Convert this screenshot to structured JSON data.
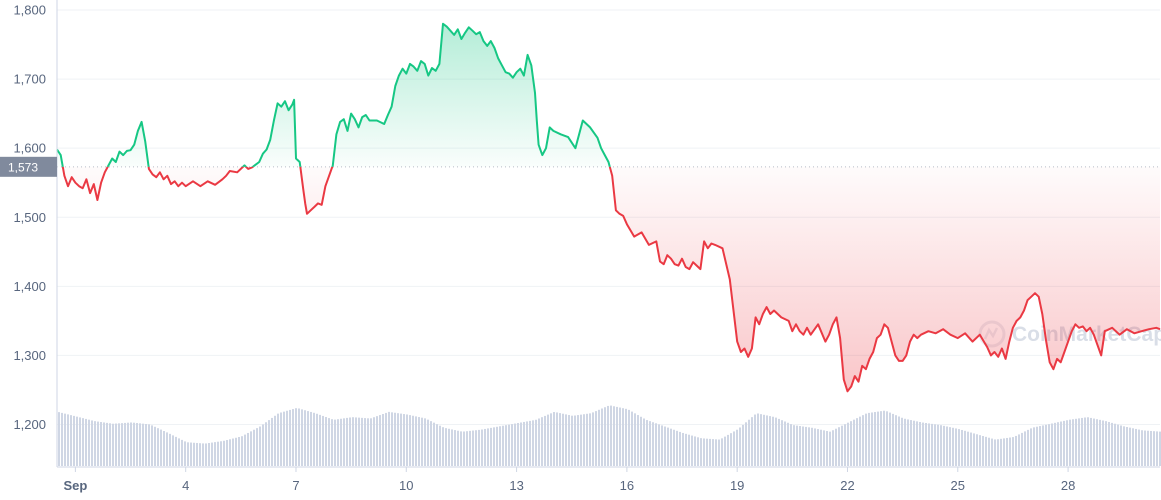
{
  "chart_data": {
    "type": "area",
    "title": "",
    "xlabel": "",
    "ylabel": "",
    "ylim": [
      1140,
      1800
    ],
    "y_ticks": [
      1200,
      1300,
      1400,
      1500,
      1600,
      1700,
      1800
    ],
    "y_tick_labels": [
      "1,200",
      "1,300",
      "1,400",
      "1,500",
      "1,600",
      "1,700",
      "1,800"
    ],
    "xlim": [
      0.5,
      30.5
    ],
    "x_ticks": [
      1,
      4,
      7,
      10,
      13,
      16,
      19,
      22,
      25,
      28
    ],
    "x_tick_labels": [
      "Sep",
      "4",
      "7",
      "10",
      "13",
      "16",
      "19",
      "22",
      "25",
      "28"
    ],
    "reference_value": 1573,
    "reference_label": "1,573",
    "watermark": "CoinMarketCap",
    "colors": {
      "above": "#16c784",
      "below": "#ea3943",
      "volume": "#cfd6e4",
      "reference_bg": "#808a9d"
    },
    "series": [
      {
        "values": [
          [
            0.5,
            1598
          ],
          [
            0.6,
            1590
          ],
          [
            0.7,
            1560
          ],
          [
            0.8,
            1545
          ],
          [
            0.9,
            1558
          ],
          [
            1.0,
            1550
          ],
          [
            1.1,
            1545
          ],
          [
            1.2,
            1542
          ],
          [
            1.3,
            1555
          ],
          [
            1.4,
            1535
          ],
          [
            1.5,
            1548
          ],
          [
            1.6,
            1525
          ],
          [
            1.7,
            1550
          ],
          [
            1.8,
            1565
          ],
          [
            1.9,
            1575
          ],
          [
            2.0,
            1585
          ],
          [
            2.1,
            1580
          ],
          [
            2.2,
            1595
          ],
          [
            2.3,
            1590
          ],
          [
            2.4,
            1596
          ],
          [
            2.5,
            1597
          ],
          [
            2.6,
            1605
          ],
          [
            2.7,
            1625
          ],
          [
            2.8,
            1638
          ],
          [
            2.9,
            1610
          ],
          [
            3.0,
            1570
          ],
          [
            3.1,
            1562
          ],
          [
            3.2,
            1558
          ],
          [
            3.3,
            1565
          ],
          [
            3.4,
            1555
          ],
          [
            3.5,
            1560
          ],
          [
            3.6,
            1548
          ],
          [
            3.7,
            1552
          ],
          [
            3.8,
            1545
          ],
          [
            3.9,
            1550
          ],
          [
            4.0,
            1545
          ],
          [
            4.2,
            1552
          ],
          [
            4.4,
            1545
          ],
          [
            4.6,
            1552
          ],
          [
            4.8,
            1547
          ],
          [
            5.0,
            1555
          ],
          [
            5.1,
            1560
          ],
          [
            5.2,
            1567
          ],
          [
            5.4,
            1565
          ],
          [
            5.6,
            1575
          ],
          [
            5.7,
            1570
          ],
          [
            5.8,
            1572
          ],
          [
            6.0,
            1580
          ],
          [
            6.1,
            1592
          ],
          [
            6.2,
            1598
          ],
          [
            6.3,
            1612
          ],
          [
            6.4,
            1640
          ],
          [
            6.5,
            1665
          ],
          [
            6.6,
            1660
          ],
          [
            6.7,
            1668
          ],
          [
            6.8,
            1655
          ],
          [
            6.9,
            1663
          ],
          [
            6.95,
            1670
          ],
          [
            7.0,
            1585
          ],
          [
            7.1,
            1580
          ],
          [
            7.2,
            1540
          ],
          [
            7.25,
            1520
          ],
          [
            7.3,
            1505
          ],
          [
            7.4,
            1510
          ],
          [
            7.5,
            1515
          ],
          [
            7.6,
            1520
          ],
          [
            7.7,
            1518
          ],
          [
            7.8,
            1545
          ],
          [
            7.9,
            1560
          ],
          [
            8.0,
            1575
          ],
          [
            8.1,
            1620
          ],
          [
            8.2,
            1638
          ],
          [
            8.3,
            1642
          ],
          [
            8.4,
            1625
          ],
          [
            8.5,
            1650
          ],
          [
            8.6,
            1642
          ],
          [
            8.7,
            1630
          ],
          [
            8.8,
            1645
          ],
          [
            8.9,
            1648
          ],
          [
            9.0,
            1640
          ],
          [
            9.2,
            1640
          ],
          [
            9.4,
            1635
          ],
          [
            9.5,
            1648
          ],
          [
            9.6,
            1660
          ],
          [
            9.7,
            1690
          ],
          [
            9.8,
            1705
          ],
          [
            9.9,
            1715
          ],
          [
            10.0,
            1708
          ],
          [
            10.1,
            1722
          ],
          [
            10.2,
            1718
          ],
          [
            10.3,
            1712
          ],
          [
            10.4,
            1726
          ],
          [
            10.5,
            1722
          ],
          [
            10.6,
            1705
          ],
          [
            10.7,
            1716
          ],
          [
            10.8,
            1712
          ],
          [
            10.9,
            1722
          ],
          [
            11.0,
            1780
          ],
          [
            11.1,
            1776
          ],
          [
            11.2,
            1770
          ],
          [
            11.3,
            1764
          ],
          [
            11.4,
            1772
          ],
          [
            11.5,
            1758
          ],
          [
            11.6,
            1767
          ],
          [
            11.7,
            1775
          ],
          [
            11.8,
            1770
          ],
          [
            11.9,
            1765
          ],
          [
            12.0,
            1768
          ],
          [
            12.1,
            1755
          ],
          [
            12.2,
            1748
          ],
          [
            12.3,
            1755
          ],
          [
            12.4,
            1745
          ],
          [
            12.5,
            1730
          ],
          [
            12.6,
            1720
          ],
          [
            12.7,
            1710
          ],
          [
            12.8,
            1708
          ],
          [
            12.9,
            1702
          ],
          [
            13.0,
            1710
          ],
          [
            13.1,
            1715
          ],
          [
            13.2,
            1705
          ],
          [
            13.3,
            1735
          ],
          [
            13.4,
            1720
          ],
          [
            13.5,
            1680
          ],
          [
            13.55,
            1640
          ],
          [
            13.6,
            1605
          ],
          [
            13.7,
            1590
          ],
          [
            13.8,
            1600
          ],
          [
            13.9,
            1630
          ],
          [
            14.0,
            1625
          ],
          [
            14.2,
            1620
          ],
          [
            14.4,
            1616
          ],
          [
            14.6,
            1600
          ],
          [
            14.8,
            1640
          ],
          [
            15.0,
            1630
          ],
          [
            15.2,
            1615
          ],
          [
            15.3,
            1600
          ],
          [
            15.4,
            1590
          ],
          [
            15.5,
            1580
          ],
          [
            15.6,
            1560
          ],
          [
            15.7,
            1510
          ],
          [
            15.8,
            1505
          ],
          [
            15.9,
            1502
          ],
          [
            16.0,
            1490
          ],
          [
            16.2,
            1472
          ],
          [
            16.4,
            1478
          ],
          [
            16.6,
            1460
          ],
          [
            16.8,
            1465
          ],
          [
            16.9,
            1436
          ],
          [
            17.0,
            1432
          ],
          [
            17.1,
            1445
          ],
          [
            17.2,
            1440
          ],
          [
            17.3,
            1432
          ],
          [
            17.4,
            1430
          ],
          [
            17.5,
            1440
          ],
          [
            17.6,
            1428
          ],
          [
            17.7,
            1425
          ],
          [
            17.8,
            1435
          ],
          [
            17.9,
            1430
          ],
          [
            18.0,
            1425
          ],
          [
            18.1,
            1465
          ],
          [
            18.2,
            1455
          ],
          [
            18.3,
            1462
          ],
          [
            18.4,
            1460
          ],
          [
            18.6,
            1455
          ],
          [
            18.8,
            1410
          ],
          [
            18.9,
            1365
          ],
          [
            19.0,
            1320
          ],
          [
            19.1,
            1305
          ],
          [
            19.2,
            1310
          ],
          [
            19.3,
            1298
          ],
          [
            19.4,
            1310
          ],
          [
            19.5,
            1355
          ],
          [
            19.6,
            1345
          ],
          [
            19.7,
            1360
          ],
          [
            19.8,
            1370
          ],
          [
            19.9,
            1360
          ],
          [
            20.0,
            1365
          ],
          [
            20.2,
            1355
          ],
          [
            20.4,
            1350
          ],
          [
            20.5,
            1335
          ],
          [
            20.6,
            1345
          ],
          [
            20.7,
            1335
          ],
          [
            20.8,
            1330
          ],
          [
            20.9,
            1340
          ],
          [
            21.0,
            1330
          ],
          [
            21.2,
            1345
          ],
          [
            21.4,
            1320
          ],
          [
            21.5,
            1330
          ],
          [
            21.6,
            1345
          ],
          [
            21.7,
            1355
          ],
          [
            21.8,
            1325
          ],
          [
            21.9,
            1265
          ],
          [
            22.0,
            1248
          ],
          [
            22.1,
            1255
          ],
          [
            22.2,
            1270
          ],
          [
            22.3,
            1262
          ],
          [
            22.4,
            1285
          ],
          [
            22.5,
            1280
          ],
          [
            22.6,
            1295
          ],
          [
            22.7,
            1305
          ],
          [
            22.8,
            1325
          ],
          [
            22.9,
            1330
          ],
          [
            23.0,
            1345
          ],
          [
            23.1,
            1340
          ],
          [
            23.2,
            1320
          ],
          [
            23.3,
            1300
          ],
          [
            23.4,
            1292
          ],
          [
            23.5,
            1292
          ],
          [
            23.6,
            1300
          ],
          [
            23.7,
            1320
          ],
          [
            23.8,
            1330
          ],
          [
            23.9,
            1325
          ],
          [
            24.0,
            1330
          ],
          [
            24.2,
            1335
          ],
          [
            24.4,
            1332
          ],
          [
            24.6,
            1338
          ],
          [
            24.8,
            1330
          ],
          [
            25.0,
            1325
          ],
          [
            25.2,
            1332
          ],
          [
            25.4,
            1320
          ],
          [
            25.6,
            1330
          ],
          [
            25.8,
            1312
          ],
          [
            25.9,
            1300
          ],
          [
            26.0,
            1305
          ],
          [
            26.1,
            1298
          ],
          [
            26.2,
            1310
          ],
          [
            26.3,
            1295
          ],
          [
            26.4,
            1320
          ],
          [
            26.5,
            1340
          ],
          [
            26.6,
            1350
          ],
          [
            26.7,
            1355
          ],
          [
            26.8,
            1365
          ],
          [
            26.9,
            1380
          ],
          [
            27.0,
            1385
          ],
          [
            27.1,
            1390
          ],
          [
            27.2,
            1385
          ],
          [
            27.3,
            1360
          ],
          [
            27.4,
            1322
          ],
          [
            27.5,
            1290
          ],
          [
            27.6,
            1280
          ],
          [
            27.7,
            1295
          ],
          [
            27.8,
            1290
          ],
          [
            27.9,
            1305
          ],
          [
            28.0,
            1320
          ],
          [
            28.1,
            1335
          ],
          [
            28.2,
            1345
          ],
          [
            28.3,
            1340
          ],
          [
            28.4,
            1342
          ],
          [
            28.5,
            1335
          ],
          [
            28.6,
            1340
          ],
          [
            28.7,
            1330
          ],
          [
            28.8,
            1315
          ],
          [
            28.9,
            1300
          ],
          [
            29.0,
            1335
          ],
          [
            29.2,
            1340
          ],
          [
            29.4,
            1330
          ],
          [
            29.6,
            1338
          ],
          [
            29.8,
            1332
          ],
          [
            30.0,
            1335
          ],
          [
            30.2,
            1338
          ],
          [
            30.4,
            1340
          ],
          [
            30.5,
            1338
          ]
        ]
      }
    ],
    "volume_series": {
      "values": [
        [
          0.5,
          0.82
        ],
        [
          1.0,
          0.75
        ],
        [
          1.5,
          0.68
        ],
        [
          2.0,
          0.64
        ],
        [
          2.5,
          0.66
        ],
        [
          3.0,
          0.63
        ],
        [
          3.5,
          0.5
        ],
        [
          4.0,
          0.36
        ],
        [
          4.5,
          0.34
        ],
        [
          5.0,
          0.38
        ],
        [
          5.5,
          0.45
        ],
        [
          6.0,
          0.6
        ],
        [
          6.5,
          0.8
        ],
        [
          7.0,
          0.88
        ],
        [
          7.5,
          0.8
        ],
        [
          8.0,
          0.7
        ],
        [
          8.5,
          0.74
        ],
        [
          9.0,
          0.72
        ],
        [
          9.5,
          0.82
        ],
        [
          10.0,
          0.78
        ],
        [
          10.5,
          0.72
        ],
        [
          11.0,
          0.58
        ],
        [
          11.5,
          0.52
        ],
        [
          12.0,
          0.55
        ],
        [
          12.5,
          0.6
        ],
        [
          13.0,
          0.65
        ],
        [
          13.5,
          0.7
        ],
        [
          14.0,
          0.82
        ],
        [
          14.5,
          0.76
        ],
        [
          15.0,
          0.8
        ],
        [
          15.5,
          0.92
        ],
        [
          16.0,
          0.86
        ],
        [
          16.5,
          0.7
        ],
        [
          17.0,
          0.6
        ],
        [
          17.5,
          0.5
        ],
        [
          18.0,
          0.42
        ],
        [
          18.5,
          0.4
        ],
        [
          19.0,
          0.56
        ],
        [
          19.5,
          0.8
        ],
        [
          20.0,
          0.74
        ],
        [
          20.5,
          0.62
        ],
        [
          21.0,
          0.58
        ],
        [
          21.5,
          0.52
        ],
        [
          22.0,
          0.66
        ],
        [
          22.5,
          0.8
        ],
        [
          23.0,
          0.84
        ],
        [
          23.5,
          0.72
        ],
        [
          24.0,
          0.66
        ],
        [
          24.5,
          0.62
        ],
        [
          25.0,
          0.56
        ],
        [
          25.5,
          0.48
        ],
        [
          26.0,
          0.4
        ],
        [
          26.5,
          0.44
        ],
        [
          27.0,
          0.58
        ],
        [
          27.5,
          0.64
        ],
        [
          28.0,
          0.7
        ],
        [
          28.5,
          0.74
        ],
        [
          29.0,
          0.68
        ],
        [
          29.5,
          0.6
        ],
        [
          30.0,
          0.54
        ],
        [
          30.5,
          0.52
        ]
      ]
    }
  }
}
